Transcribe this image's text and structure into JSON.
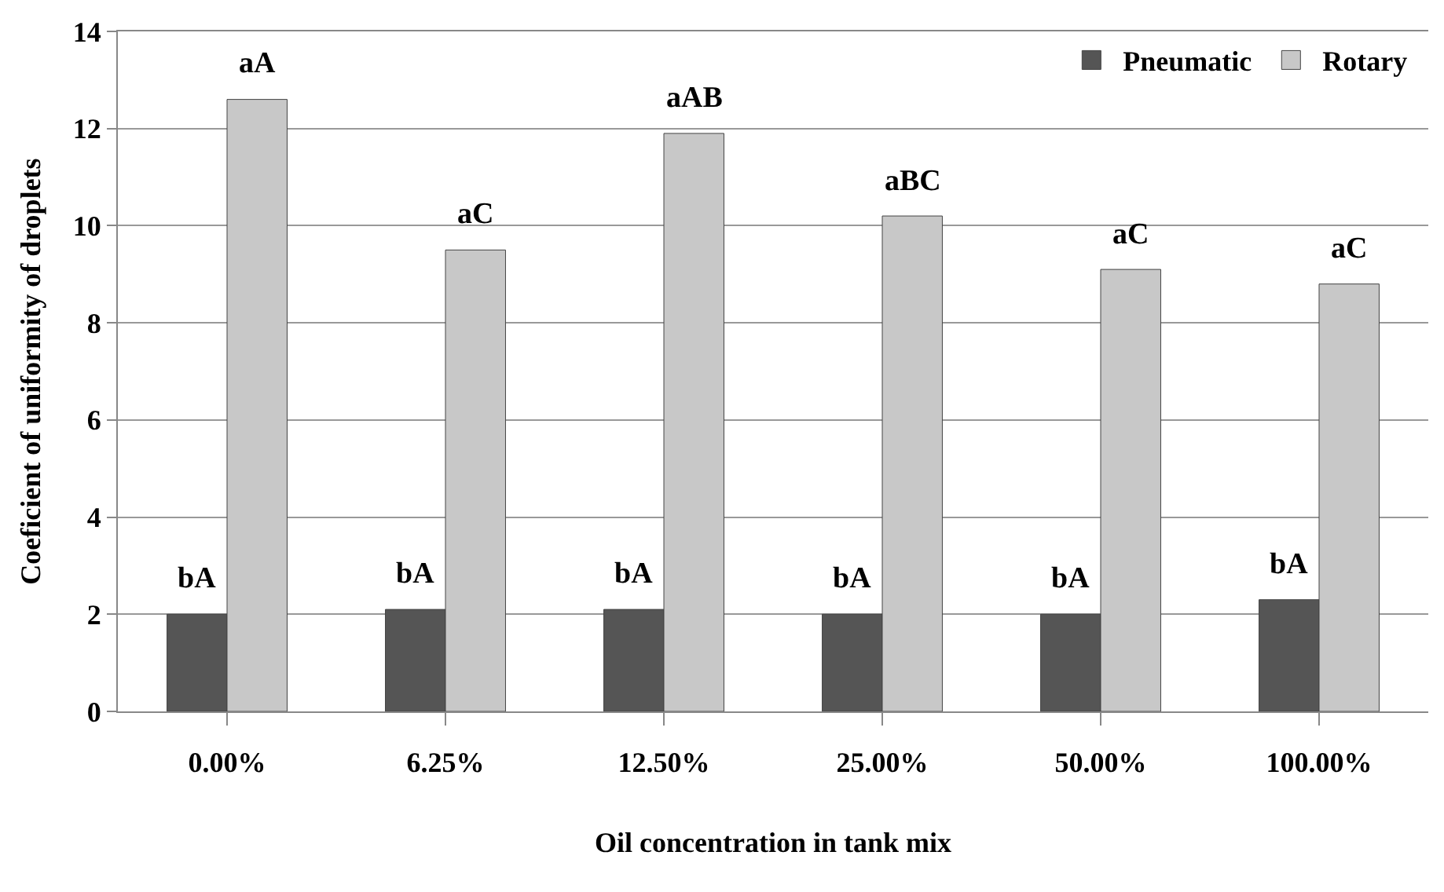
{
  "chart_data": {
    "type": "bar",
    "xlabel": "Oil concentration in tank mix",
    "ylabel": "Coeficient of uniformity of droplets",
    "categories": [
      "0.00%",
      "6.25%",
      "12.50%",
      "25.00%",
      "50.00%",
      "100.00%"
    ],
    "series": [
      {
        "name": "Pneumatic",
        "color": "#555555",
        "values": [
          2.0,
          2.1,
          2.1,
          2.0,
          2.0,
          2.3
        ]
      },
      {
        "name": "Rotary",
        "color": "#c8c8c8",
        "values": [
          12.6,
          9.5,
          11.9,
          10.2,
          9.1,
          8.8
        ]
      }
    ],
    "ylim": [
      0,
      14
    ],
    "yticks": [
      0,
      2,
      4,
      6,
      8,
      10,
      12,
      14
    ],
    "grid": "y",
    "legend": "top right",
    "annotations": [
      {
        "text": "bA",
        "x": "0.00%",
        "y": 2.0
      },
      {
        "text": "bA",
        "x": "6.25%",
        "y": 2.1
      },
      {
        "text": "bA",
        "x": "12.50%",
        "y": 2.1
      },
      {
        "text": "bA",
        "x": "25.00%",
        "y": 2.0
      },
      {
        "text": "bA",
        "x": "50.00%",
        "y": 2.0
      },
      {
        "text": "bA",
        "x": "100.00%",
        "y": 2.3
      },
      {
        "text": "aA",
        "x": "0.00%",
        "y": 12.6
      },
      {
        "text": "aC",
        "x": "6.25%",
        "y": 9.5
      },
      {
        "text": "aAB",
        "x": "12.50%",
        "y": 11.9
      },
      {
        "text": "aBC",
        "x": "25.00%",
        "y": 10.2
      },
      {
        "text": "aC",
        "x": "50.00%",
        "y": 9.1
      },
      {
        "text": "aC",
        "x": "100.00%",
        "y": 8.8
      }
    ]
  }
}
